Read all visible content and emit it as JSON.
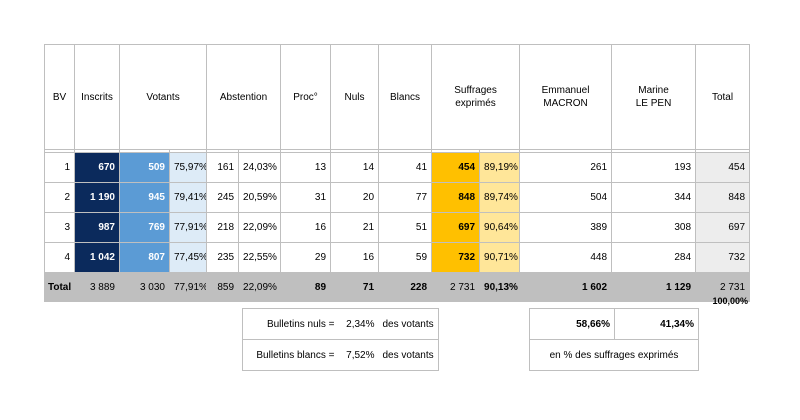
{
  "header": {
    "bv": "BV",
    "inscrits": "Inscrits",
    "votants": "Votants",
    "abstention": "Abstention",
    "proc": "Proc°",
    "nuls": "Nuls",
    "blancs": "Blancs",
    "suffrages_l1": "Suffrages",
    "suffrages_l2": "exprimés",
    "macron_l1": "Emmanuel",
    "macron_l2": "MACRON",
    "lepen_l1": "Marine",
    "lepen_l2": "LE PEN",
    "total": "Total"
  },
  "rows": [
    {
      "bv": "1",
      "inscrits": "670",
      "votants": "509",
      "votants_pct": "75,97%",
      "abst": "161",
      "abst_pct": "24,03%",
      "proc": "13",
      "nuls": "14",
      "blancs": "41",
      "suffrages": "454",
      "suffrages_pct": "89,19%",
      "macron": "261",
      "lepen": "193",
      "total": "454"
    },
    {
      "bv": "2",
      "inscrits": "1 190",
      "votants": "945",
      "votants_pct": "79,41%",
      "abst": "245",
      "abst_pct": "20,59%",
      "proc": "31",
      "nuls": "20",
      "blancs": "77",
      "suffrages": "848",
      "suffrages_pct": "89,74%",
      "macron": "504",
      "lepen": "344",
      "total": "848"
    },
    {
      "bv": "3",
      "inscrits": "987",
      "votants": "769",
      "votants_pct": "77,91%",
      "abst": "218",
      "abst_pct": "22,09%",
      "proc": "16",
      "nuls": "21",
      "blancs": "51",
      "suffrages": "697",
      "suffrages_pct": "90,64%",
      "macron": "389",
      "lepen": "308",
      "total": "697"
    },
    {
      "bv": "4",
      "inscrits": "1 042",
      "votants": "807",
      "votants_pct": "77,45%",
      "abst": "235",
      "abst_pct": "22,55%",
      "proc": "29",
      "nuls": "16",
      "blancs": "59",
      "suffrages": "732",
      "suffrages_pct": "90,71%",
      "macron": "448",
      "lepen": "284",
      "total": "732"
    }
  ],
  "totals": {
    "bv": "Total",
    "inscrits": "3 889",
    "votants": "3 030",
    "votants_pct": "77,91%",
    "abst": "859",
    "abst_pct": "22,09%",
    "proc": "89",
    "nuls": "71",
    "blancs": "228",
    "suffrages": "2 731",
    "suffrages_pct": "90,13%",
    "macron": "1 602",
    "lepen": "1 129",
    "total": "2 731"
  },
  "share_total": "100,00%",
  "stats": {
    "nuls_label": "Bulletins nuls =",
    "nuls_value": "2,34%",
    "nuls_suffix": "des votants",
    "blancs_label": "Bulletins blancs =",
    "blancs_value": "7,52%",
    "blancs_suffix": "des votants"
  },
  "candidates": {
    "macron_pct": "58,66%",
    "lepen_pct": "41,34%",
    "note": "en % des suffrages exprimés"
  },
  "colors": {
    "inscrits": "#0b2a5c",
    "votants": "#5b9bd5",
    "votants_pct": "#ddebf7",
    "suffrages": "#ffc000",
    "suffrages_pct": "#ffe699",
    "total_row": "#bfbfbf",
    "total_col": "#ededed"
  }
}
